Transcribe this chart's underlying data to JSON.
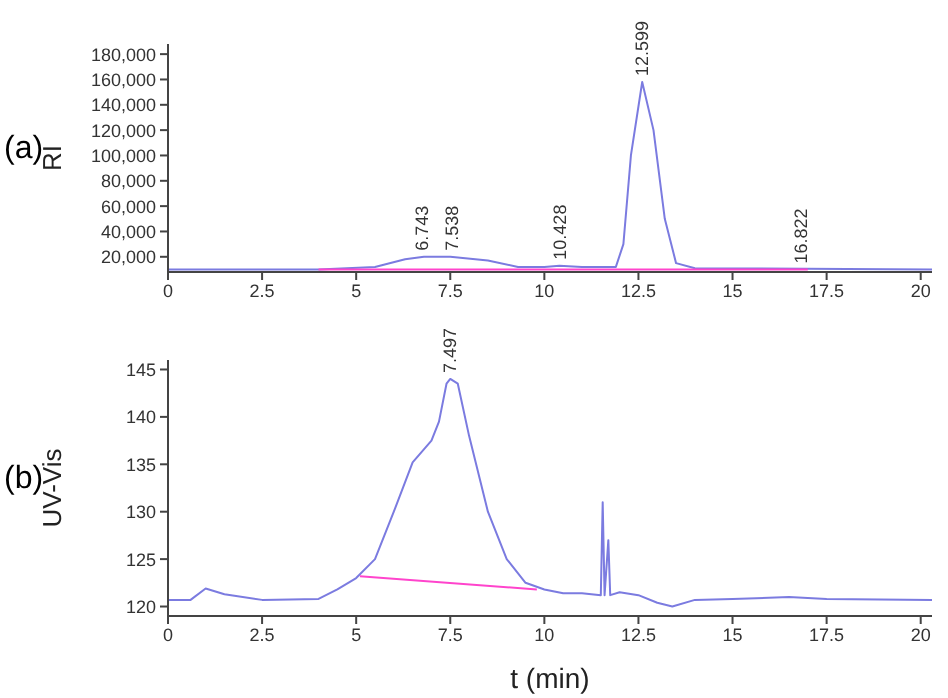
{
  "chart_data": [
    {
      "type": "line",
      "ylabel": "RI",
      "xlim": [
        0,
        20.3
      ],
      "ylim": [
        8000,
        188000
      ],
      "xticks": [
        0,
        2.5,
        5,
        7.5,
        10,
        12.5,
        15,
        17.5,
        20
      ],
      "yticks": [
        {
          "value": 20000,
          "label": "20,000"
        },
        {
          "value": 40000,
          "label": "40,000"
        },
        {
          "value": 60000,
          "label": "60,000"
        },
        {
          "value": 80000,
          "label": "80,000"
        },
        {
          "value": 100000,
          "label": "100,000"
        },
        {
          "value": 120000,
          "label": "120,000"
        },
        {
          "value": 140000,
          "label": "140,000"
        },
        {
          "value": 160000,
          "label": "160,000"
        },
        {
          "value": 180000,
          "label": "180,000"
        }
      ],
      "grid": false,
      "marker": "none",
      "line_style": "solid",
      "series": [
        {
          "color": "#7b7be0",
          "x": [
            0,
            4,
            5.5,
            6.3,
            6.8,
            7.5,
            8.5,
            9.3,
            10,
            10.4,
            11,
            11.9,
            12.1,
            12.3,
            12.6,
            12.9,
            13.2,
            13.5,
            14,
            20.3
          ],
          "values": [
            10000,
            10000,
            12000,
            18000,
            20000,
            20000,
            17000,
            12000,
            12000,
            13000,
            12000,
            12000,
            30000,
            100000,
            158000,
            120000,
            50000,
            15000,
            11000,
            10000
          ]
        },
        {
          "color": "#ff44cc",
          "x": [
            4,
            17
          ],
          "values": [
            10000,
            10000
          ]
        }
      ],
      "annotations": [
        "(a)",
        {
          "text": "6.743",
          "x": 6.743,
          "y": 20000
        },
        {
          "text": "7.538",
          "x": 7.538,
          "y": 20000
        },
        {
          "text": "10.428",
          "x": 10.428,
          "y": 13000
        },
        {
          "text": "12.599",
          "x": 12.599,
          "y": 158000
        },
        {
          "text": "16.822",
          "x": 16.822,
          "y": 10000
        }
      ]
    },
    {
      "type": "line",
      "xlabel": "t (min)",
      "ylabel": "UV-Vis",
      "xlim": [
        0,
        20.3
      ],
      "ylim": [
        119,
        146
      ],
      "xticks": [
        0,
        2.5,
        5,
        7.5,
        10,
        12.5,
        15,
        17.5,
        20
      ],
      "yticks": [
        120,
        125,
        130,
        135,
        140,
        145
      ],
      "grid": false,
      "marker": "none",
      "line_style": "solid",
      "series": [
        {
          "color": "#7b7be0",
          "x": [
            0,
            0.6,
            1.0,
            1.5,
            2.5,
            4.0,
            4.5,
            5.0,
            5.5,
            6.0,
            6.5,
            7.0,
            7.2,
            7.4,
            7.5,
            7.7,
            8.0,
            8.5,
            9.0,
            9.5,
            10,
            10.5,
            11.0,
            11.5,
            11.55,
            11.6,
            11.7,
            11.75,
            12.0,
            12.5,
            13.0,
            13.4,
            14.0,
            15,
            16.5,
            17.5,
            20.3
          ],
          "values": [
            120.7,
            120.7,
            121.9,
            121.3,
            120.7,
            120.8,
            121.8,
            123,
            125,
            130,
            135.2,
            137.5,
            139.5,
            143.5,
            144,
            143.5,
            138,
            130,
            125,
            122.5,
            121.8,
            121.4,
            121.4,
            121.2,
            131,
            121.2,
            127,
            121.2,
            121.5,
            121.2,
            120.4,
            120,
            120.7,
            120.8,
            121,
            120.8,
            120.7
          ]
        },
        {
          "color": "#ff44cc",
          "x": [
            5.1,
            9.8
          ],
          "values": [
            123.2,
            121.8
          ]
        }
      ],
      "annotations": [
        "(b)",
        {
          "text": "7.497",
          "x": 7.497,
          "y": 144
        }
      ]
    }
  ]
}
